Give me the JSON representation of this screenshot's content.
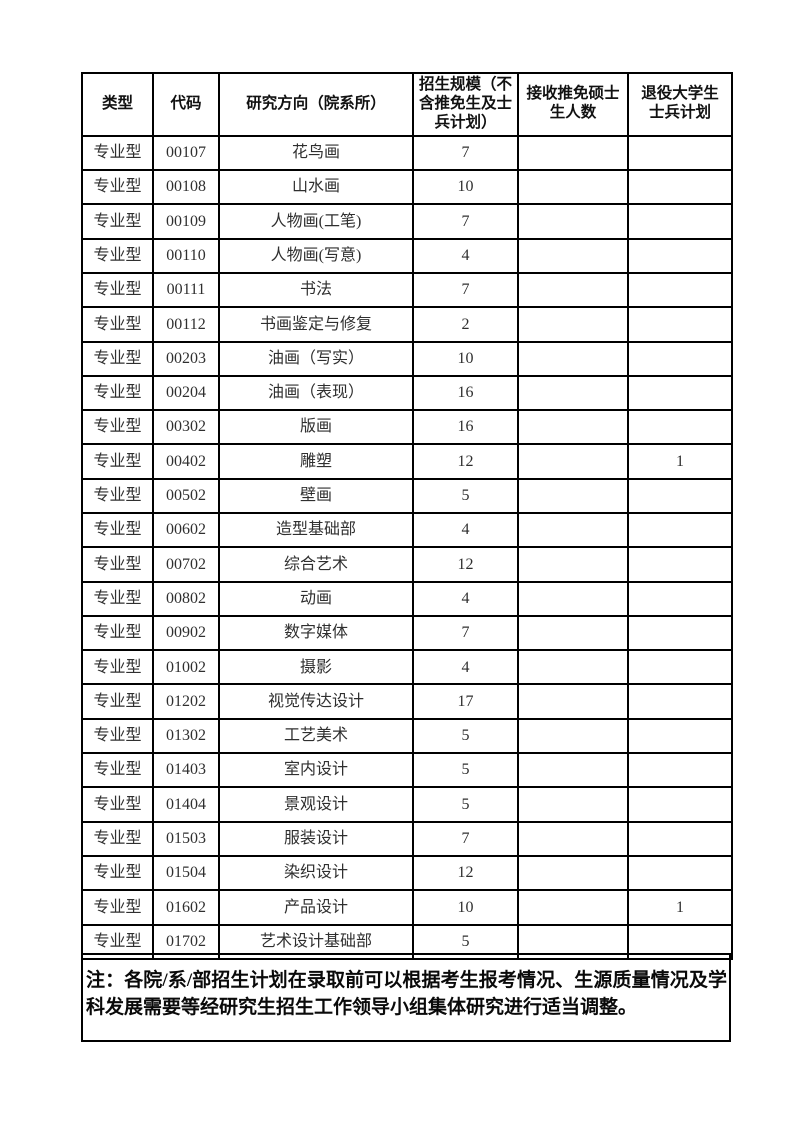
{
  "table": {
    "headers": [
      "类型",
      "代码",
      "研究方向（院系所）",
      "招生规模（不含推免生及士兵计划）",
      "接收推免硕士生人数",
      "退役大学生士兵计划"
    ],
    "rows": [
      [
        "专业型",
        "00107",
        "花鸟画",
        "7",
        "",
        ""
      ],
      [
        "专业型",
        "00108",
        "山水画",
        "10",
        "",
        ""
      ],
      [
        "专业型",
        "00109",
        "人物画(工笔)",
        "7",
        "",
        ""
      ],
      [
        "专业型",
        "00110",
        "人物画(写意)",
        "4",
        "",
        ""
      ],
      [
        "专业型",
        "00111",
        "书法",
        "7",
        "",
        ""
      ],
      [
        "专业型",
        "00112",
        "书画鉴定与修复",
        "2",
        "",
        ""
      ],
      [
        "专业型",
        "00203",
        "油画（写实）",
        "10",
        "",
        ""
      ],
      [
        "专业型",
        "00204",
        "油画（表现）",
        "16",
        "",
        ""
      ],
      [
        "专业型",
        "00302",
        "版画",
        "16",
        "",
        ""
      ],
      [
        "专业型",
        "00402",
        "雕塑",
        "12",
        "",
        "1"
      ],
      [
        "专业型",
        "00502",
        "壁画",
        "5",
        "",
        ""
      ],
      [
        "专业型",
        "00602",
        "造型基础部",
        "4",
        "",
        ""
      ],
      [
        "专业型",
        "00702",
        "综合艺术",
        "12",
        "",
        ""
      ],
      [
        "专业型",
        "00802",
        "动画",
        "4",
        "",
        ""
      ],
      [
        "专业型",
        "00902",
        "数字媒体",
        "7",
        "",
        ""
      ],
      [
        "专业型",
        "01002",
        "摄影",
        "4",
        "",
        ""
      ],
      [
        "专业型",
        "01202",
        "视觉传达设计",
        "17",
        "",
        ""
      ],
      [
        "专业型",
        "01302",
        "工艺美术",
        "5",
        "",
        ""
      ],
      [
        "专业型",
        "01403",
        "室内设计",
        "5",
        "",
        ""
      ],
      [
        "专业型",
        "01404",
        "景观设计",
        "5",
        "",
        ""
      ],
      [
        "专业型",
        "01503",
        "服装设计",
        "7",
        "",
        ""
      ],
      [
        "专业型",
        "01504",
        "染织设计",
        "12",
        "",
        ""
      ],
      [
        "专业型",
        "01602",
        "产品设计",
        "10",
        "",
        "1"
      ],
      [
        "专业型",
        "01702",
        "艺术设计基础部",
        "5",
        "",
        ""
      ]
    ]
  },
  "note": "注：各院/系/部招生计划在录取前可以根据考生报考情况、生源质量情况及学科发展需要等经研究生招生工作领导小组集体研究进行适当调整。",
  "colors": {
    "border": "#000000",
    "body_text": "#2f2f2f",
    "header_text": "#111111"
  }
}
